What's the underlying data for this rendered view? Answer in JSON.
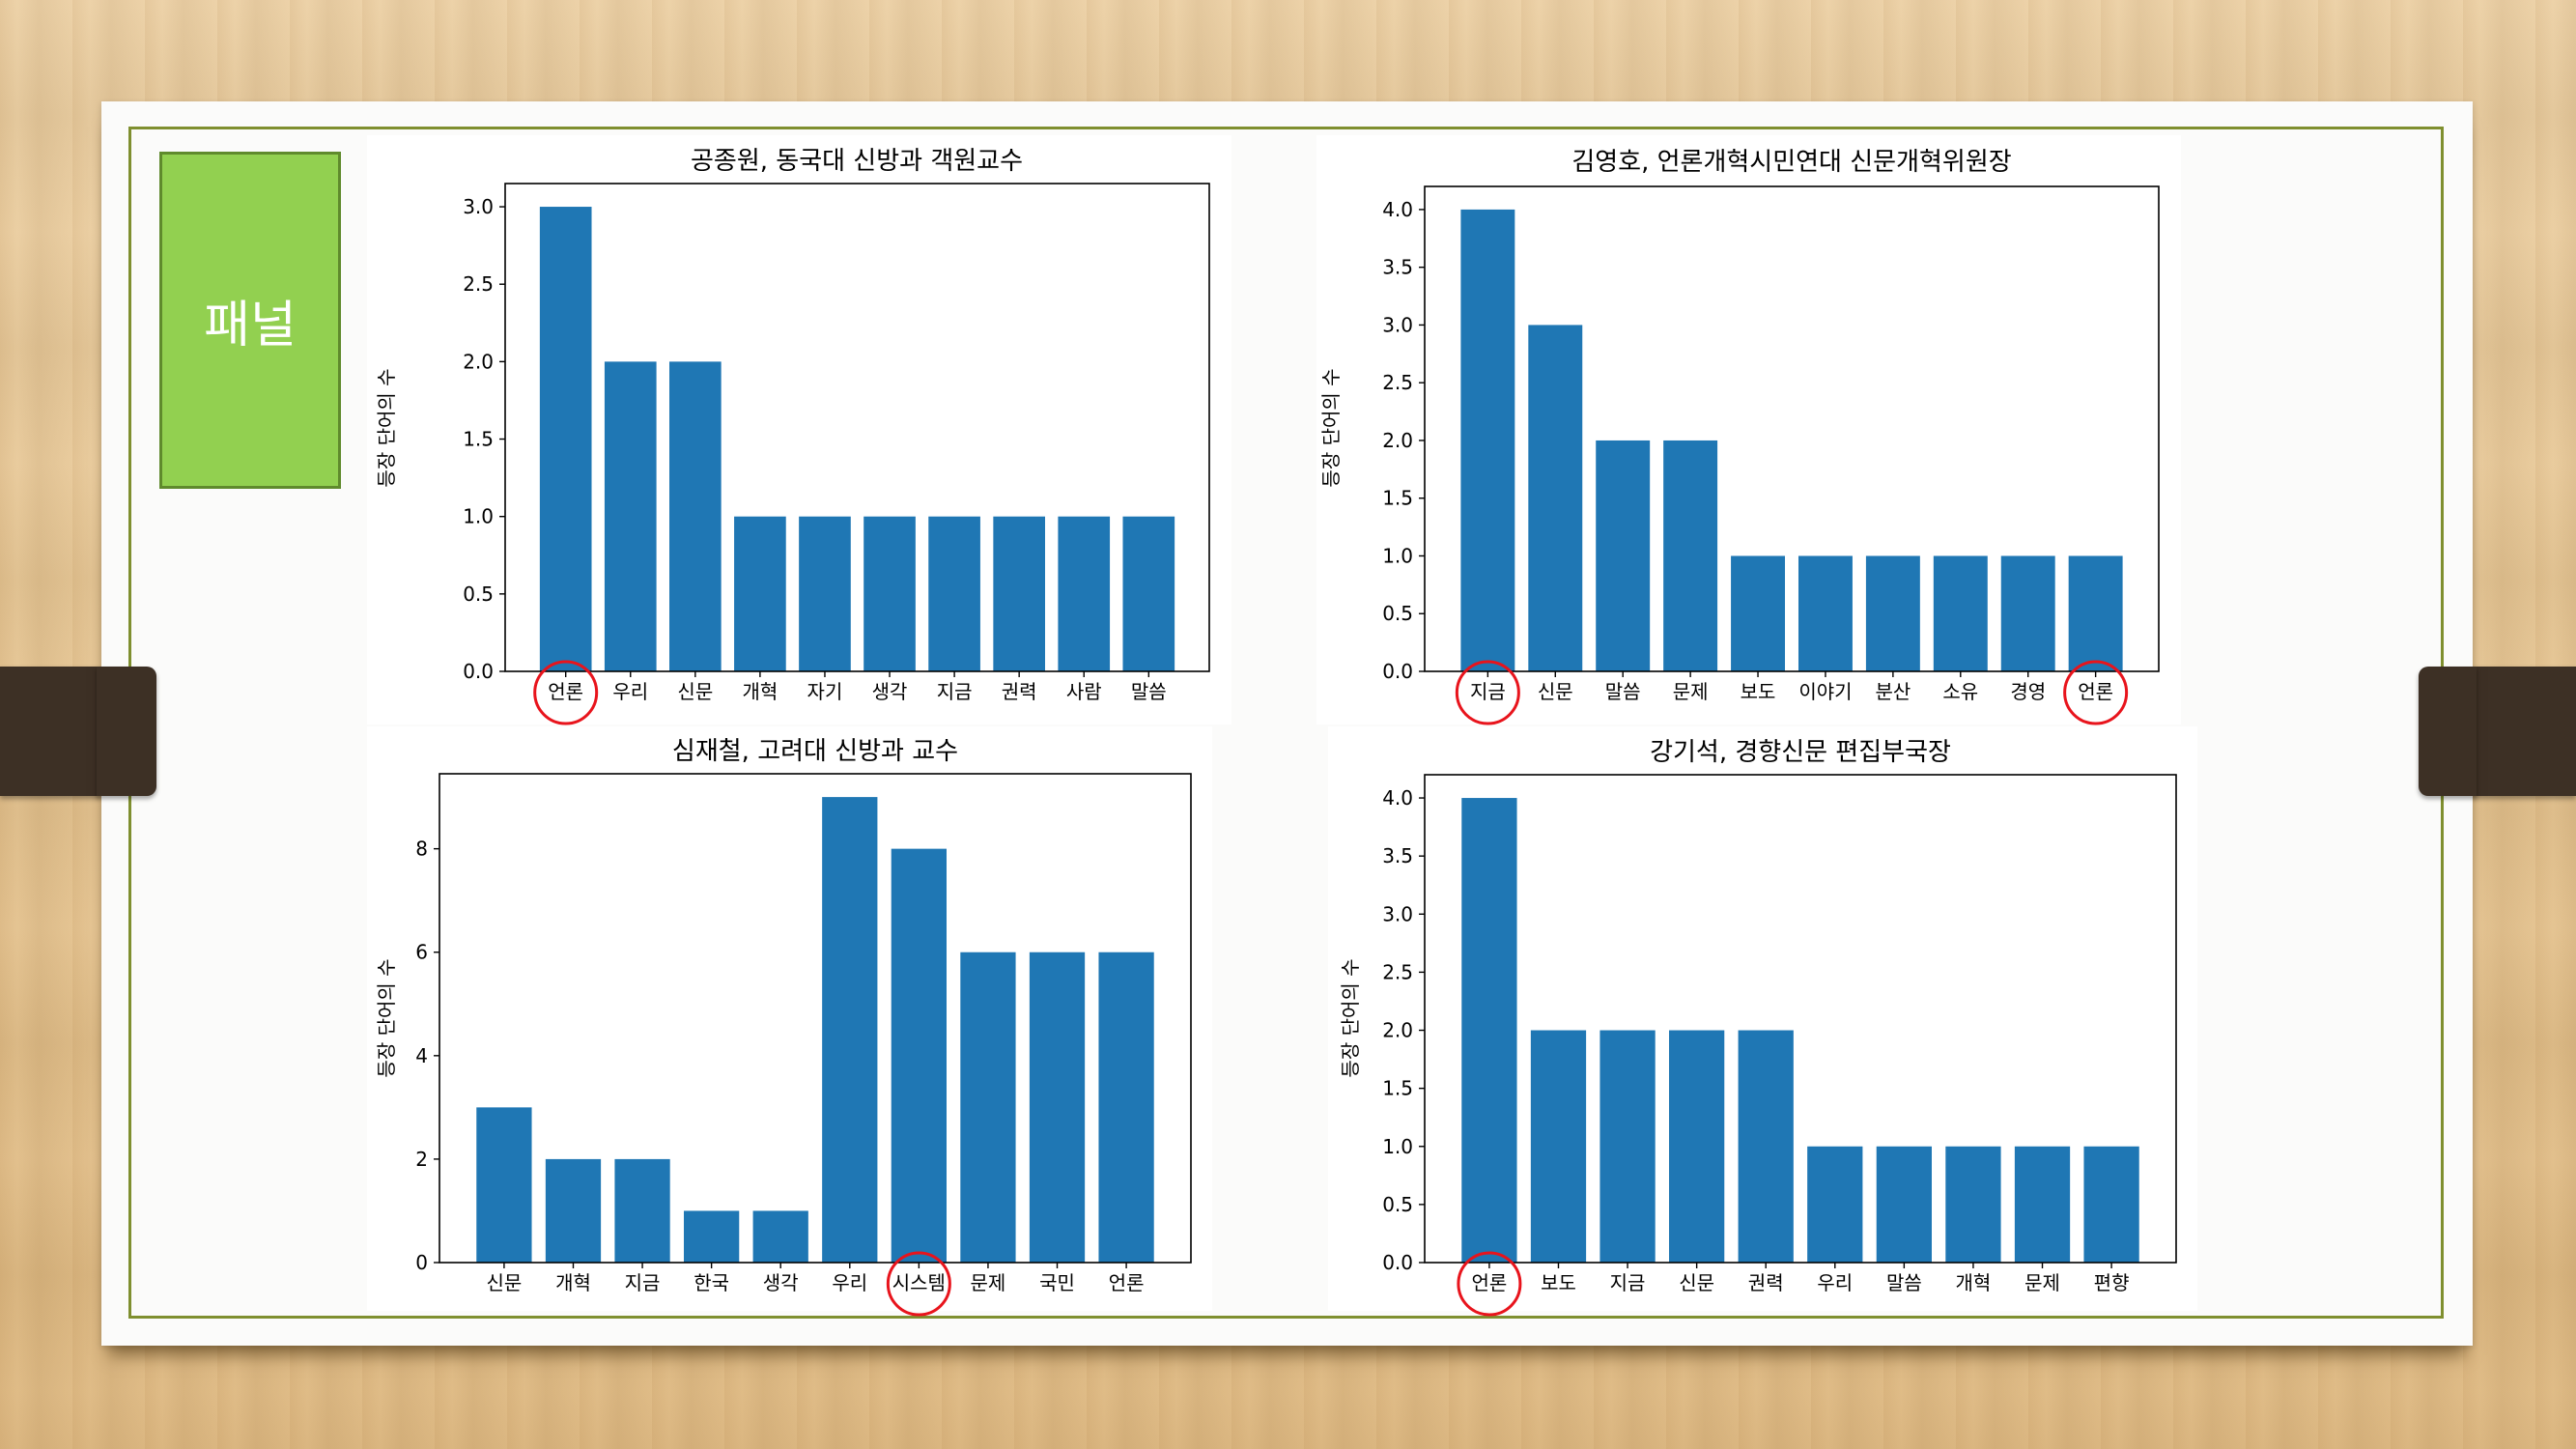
{
  "panel_label": "패널",
  "colors": {
    "bar": "#1f77b4",
    "highlight_circle": "#e8141c",
    "panel_label_bg": "#92d050",
    "frame": "#7f8f2f"
  },
  "chart_data": [
    {
      "type": "bar",
      "title": "공종원, 동국대 신방과 객원교수",
      "ylabel": "등장 단어의 수",
      "categories": [
        "언론",
        "우리",
        "신문",
        "개혁",
        "자기",
        "생각",
        "지금",
        "권력",
        "사람",
        "말씀"
      ],
      "values": [
        3,
        2,
        2,
        1,
        1,
        1,
        1,
        1,
        1,
        1
      ],
      "ylim": [
        0,
        3.15
      ],
      "yticks": [
        "0.0",
        "0.5",
        "1.0",
        "1.5",
        "2.0",
        "2.5",
        "3.0"
      ],
      "highlighted": [
        "언론"
      ]
    },
    {
      "type": "bar",
      "title": "김영호, 언론개혁시민연대 신문개혁위원장",
      "ylabel": "등장 단어의 수",
      "categories": [
        "지금",
        "신문",
        "말씀",
        "문제",
        "보도",
        "이야기",
        "분산",
        "소유",
        "경영",
        "언론"
      ],
      "values": [
        4,
        3,
        2,
        2,
        1,
        1,
        1,
        1,
        1,
        1
      ],
      "ylim": [
        0,
        4.2
      ],
      "yticks": [
        "0.0",
        "0.5",
        "1.0",
        "1.5",
        "2.0",
        "2.5",
        "3.0",
        "3.5",
        "4.0"
      ],
      "highlighted": [
        "지금",
        "언론"
      ]
    },
    {
      "type": "bar",
      "title": "심재철, 고려대 신방과 교수",
      "ylabel": "등장 단어의 수",
      "categories": [
        "신문",
        "개혁",
        "지금",
        "한국",
        "생각",
        "우리",
        "시스템",
        "문제",
        "국민",
        "언론"
      ],
      "values": [
        3,
        2,
        2,
        1,
        1,
        9,
        8,
        6,
        6,
        6
      ],
      "ylim": [
        0,
        9.45
      ],
      "yticks": [
        "0",
        "2",
        "4",
        "6",
        "8"
      ],
      "highlighted": [
        "시스템"
      ]
    },
    {
      "type": "bar",
      "title": "강기석, 경향신문 편집부국장",
      "ylabel": "등장 단어의 수",
      "categories": [
        "언론",
        "보도",
        "지금",
        "신문",
        "권력",
        "우리",
        "말씀",
        "개혁",
        "문제",
        "편향"
      ],
      "values": [
        4,
        2,
        2,
        2,
        2,
        1,
        1,
        1,
        1,
        1
      ],
      "ylim": [
        0,
        4.2
      ],
      "yticks": [
        "0.0",
        "0.5",
        "1.0",
        "1.5",
        "2.0",
        "2.5",
        "3.0",
        "3.5",
        "4.0"
      ],
      "highlighted": [
        "언론"
      ]
    }
  ]
}
